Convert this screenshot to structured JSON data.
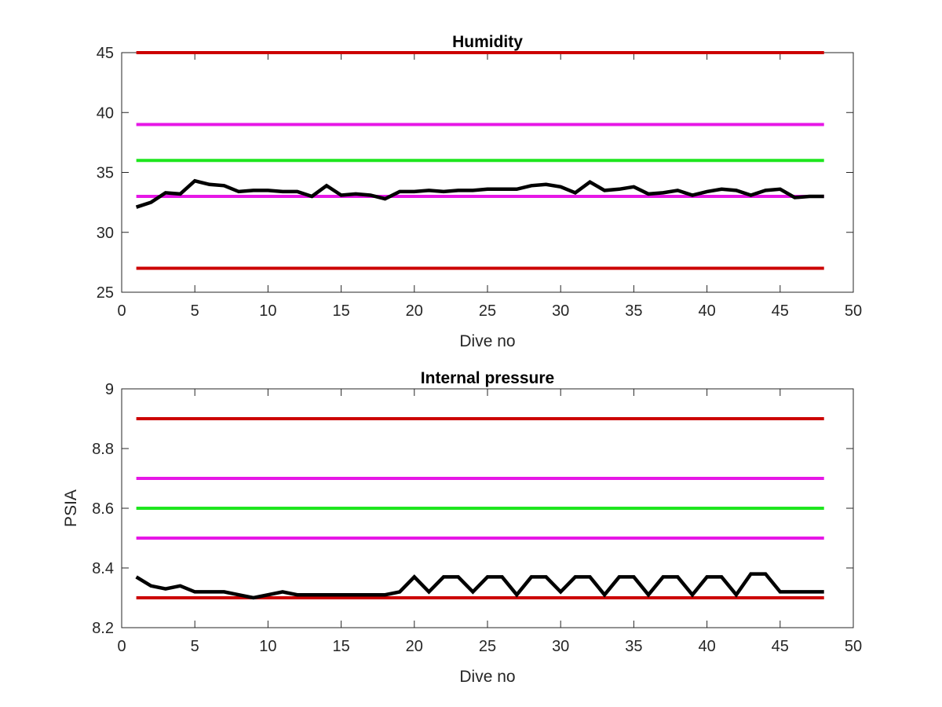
{
  "chart_data": [
    {
      "type": "line",
      "title": "Humidity",
      "xlabel": "Dive no",
      "ylabel": "",
      "xlim": [
        0,
        50
      ],
      "ylim": [
        25,
        45
      ],
      "xticks": [
        "0",
        "5",
        "10",
        "15",
        "20",
        "25",
        "30",
        "35",
        "40",
        "45",
        "50"
      ],
      "yticks": [
        "25",
        "30",
        "35",
        "40",
        "45"
      ],
      "grid": false,
      "reference_lines": [
        {
          "y": 45,
          "color": "#cc0000",
          "x_range": [
            1,
            48
          ]
        },
        {
          "y": 39,
          "color": "#e617e6",
          "x_range": [
            1,
            48
          ]
        },
        {
          "y": 36,
          "color": "#1ee61e",
          "x_range": [
            1,
            48
          ]
        },
        {
          "y": 33,
          "color": "#e617e6",
          "x_range": [
            1,
            48
          ]
        },
        {
          "y": 27,
          "color": "#cc0000",
          "x_range": [
            1,
            48
          ]
        }
      ],
      "series": [
        {
          "color": "#000000",
          "x": [
            1,
            2,
            3,
            4,
            5,
            6,
            7,
            8,
            9,
            10,
            11,
            12,
            13,
            14,
            15,
            16,
            17,
            18,
            19,
            20,
            21,
            22,
            23,
            24,
            25,
            26,
            27,
            28,
            29,
            30,
            31,
            32,
            33,
            34,
            35,
            36,
            37,
            38,
            39,
            40,
            41,
            42,
            43,
            44,
            45,
            46,
            47,
            48
          ],
          "values": [
            32.1,
            32.5,
            33.3,
            33.2,
            34.3,
            34.0,
            33.9,
            33.4,
            33.5,
            33.5,
            33.4,
            33.4,
            33.0,
            33.9,
            33.1,
            33.2,
            33.1,
            32.8,
            33.4,
            33.4,
            33.5,
            33.4,
            33.5,
            33.5,
            33.6,
            33.6,
            33.6,
            33.9,
            34.0,
            33.8,
            33.3,
            34.2,
            33.5,
            33.6,
            33.8,
            33.2,
            33.3,
            33.5,
            33.1,
            33.4,
            33.6,
            33.5,
            33.1,
            33.5,
            33.6,
            32.9,
            33.0,
            33.0
          ]
        }
      ]
    },
    {
      "type": "line",
      "title": "Internal pressure",
      "xlabel": "Dive no",
      "ylabel": "PSIA",
      "xlim": [
        0,
        50
      ],
      "ylim": [
        8.2,
        9
      ],
      "xticks": [
        "0",
        "5",
        "10",
        "15",
        "20",
        "25",
        "30",
        "35",
        "40",
        "45",
        "50"
      ],
      "yticks": [
        "8.2",
        "8.4",
        "8.6",
        "8.8",
        "9"
      ],
      "grid": false,
      "reference_lines": [
        {
          "y": 8.9,
          "color": "#cc0000",
          "x_range": [
            1,
            48
          ]
        },
        {
          "y": 8.7,
          "color": "#e617e6",
          "x_range": [
            1,
            48
          ]
        },
        {
          "y": 8.6,
          "color": "#1ee61e",
          "x_range": [
            1,
            48
          ]
        },
        {
          "y": 8.5,
          "color": "#e617e6",
          "x_range": [
            1,
            48
          ]
        },
        {
          "y": 8.3,
          "color": "#cc0000",
          "x_range": [
            1,
            48
          ]
        }
      ],
      "series": [
        {
          "color": "#000000",
          "x": [
            1,
            2,
            3,
            4,
            5,
            6,
            7,
            8,
            9,
            10,
            11,
            12,
            13,
            14,
            15,
            16,
            17,
            18,
            19,
            20,
            21,
            22,
            23,
            24,
            25,
            26,
            27,
            28,
            29,
            30,
            31,
            32,
            33,
            34,
            35,
            36,
            37,
            38,
            39,
            40,
            41,
            42,
            43,
            44,
            45,
            46,
            47,
            48
          ],
          "values": [
            8.37,
            8.34,
            8.33,
            8.34,
            8.32,
            8.32,
            8.32,
            8.31,
            8.3,
            8.31,
            8.32,
            8.31,
            8.31,
            8.31,
            8.31,
            8.31,
            8.31,
            8.31,
            8.32,
            8.37,
            8.32,
            8.37,
            8.37,
            8.32,
            8.37,
            8.37,
            8.31,
            8.37,
            8.37,
            8.32,
            8.37,
            8.37,
            8.31,
            8.37,
            8.37,
            8.31,
            8.37,
            8.37,
            8.31,
            8.37,
            8.37,
            8.31,
            8.38,
            8.38,
            8.32,
            8.32,
            8.32,
            8.32
          ]
        }
      ]
    }
  ]
}
